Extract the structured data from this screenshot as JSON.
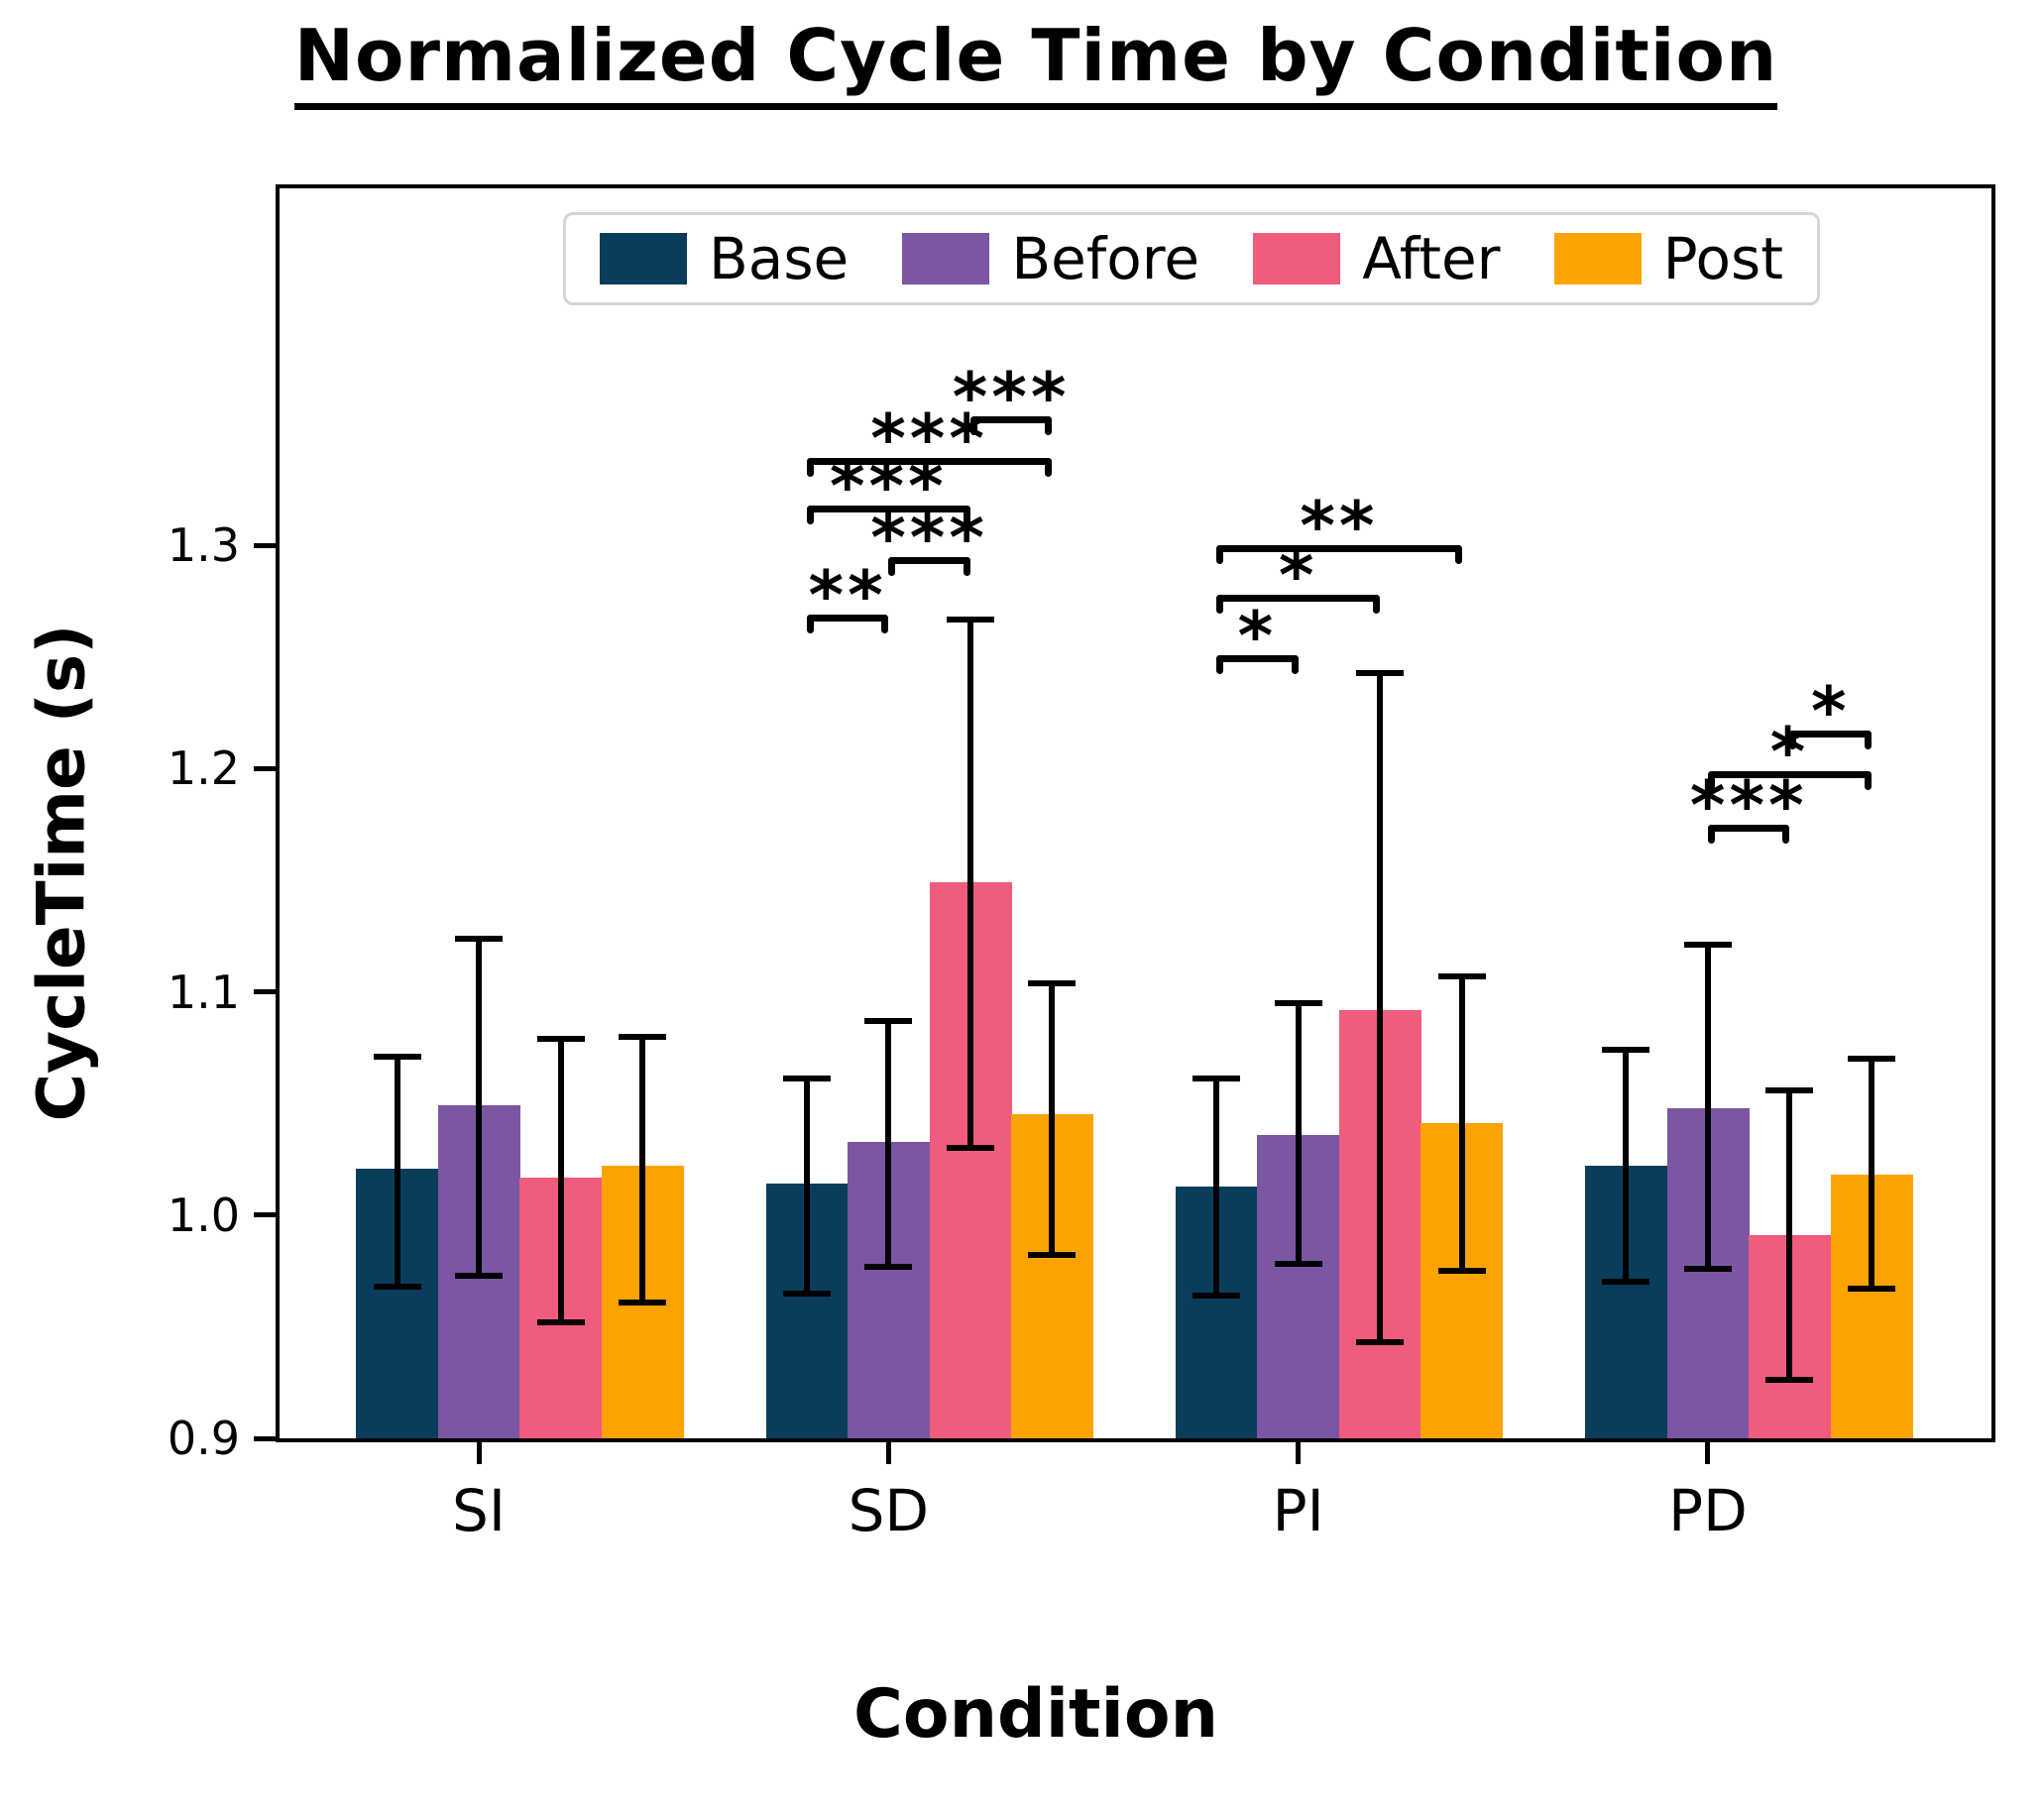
{
  "title": "Normalized Cycle Time by Condition",
  "xlabel": "Condition",
  "ylabel": "CycleTime (s)",
  "chart_data": {
    "type": "bar",
    "categories": [
      "SI",
      "SD",
      "PI",
      "PD"
    ],
    "series": [
      {
        "name": "Base",
        "color": "#0a3d5c",
        "values": [
          1.021,
          1.014,
          1.013,
          1.022
        ],
        "err_lo": [
          0.968,
          0.965,
          0.964,
          0.97
        ],
        "err_hi": [
          1.071,
          1.061,
          1.061,
          1.074
        ]
      },
      {
        "name": "Before",
        "color": "#7a56a3",
        "values": [
          1.049,
          1.033,
          1.036,
          1.048
        ],
        "err_lo": [
          0.973,
          0.977,
          0.978,
          0.976
        ],
        "err_hi": [
          1.124,
          1.087,
          1.095,
          1.121
        ]
      },
      {
        "name": "After",
        "color": "#f05c7c",
        "values": [
          1.017,
          1.149,
          1.092,
          0.991
        ],
        "err_lo": [
          0.952,
          1.03,
          0.943,
          0.926
        ],
        "err_hi": [
          1.079,
          1.267,
          1.243,
          1.056
        ]
      },
      {
        "name": "Post",
        "color": "#fda301",
        "values": [
          1.022,
          1.045,
          1.041,
          1.018
        ],
        "err_lo": [
          0.961,
          0.982,
          0.975,
          0.967
        ],
        "err_hi": [
          1.08,
          1.104,
          1.107,
          1.07
        ]
      }
    ],
    "ylim": [
      0.9,
      1.46
    ],
    "yticks": [
      0.9,
      1.0,
      1.1,
      1.2,
      1.3
    ],
    "grid": false,
    "legend_position": "upper center",
    "error_bars": true,
    "significance": [
      {
        "group": "SD",
        "from": "Base",
        "to": "Before",
        "label": "**",
        "y": 1.269
      },
      {
        "group": "SD",
        "from": "Before",
        "to": "After",
        "label": "***",
        "y": 1.295
      },
      {
        "group": "SD",
        "from": "Base",
        "to": "After",
        "label": "***",
        "y": 1.318
      },
      {
        "group": "SD",
        "from": "Base",
        "to": "Post",
        "label": "***",
        "y": 1.339
      },
      {
        "group": "SD",
        "from": "After",
        "to": "Post",
        "label": "***",
        "y": 1.358
      },
      {
        "group": "PI",
        "from": "Base",
        "to": "Before",
        "label": "*",
        "y": 1.251
      },
      {
        "group": "PI",
        "from": "Base",
        "to": "After",
        "label": "*",
        "y": 1.278
      },
      {
        "group": "PI",
        "from": "Base",
        "to": "Post",
        "label": "**",
        "y": 1.3
      },
      {
        "group": "PD",
        "from": "Before",
        "to": "After",
        "label": "***",
        "y": 1.175
      },
      {
        "group": "PD",
        "from": "Before",
        "to": "Post",
        "label": "*",
        "y": 1.199
      },
      {
        "group": "PD",
        "from": "After",
        "to": "Post",
        "label": "*",
        "y": 1.217
      }
    ]
  }
}
